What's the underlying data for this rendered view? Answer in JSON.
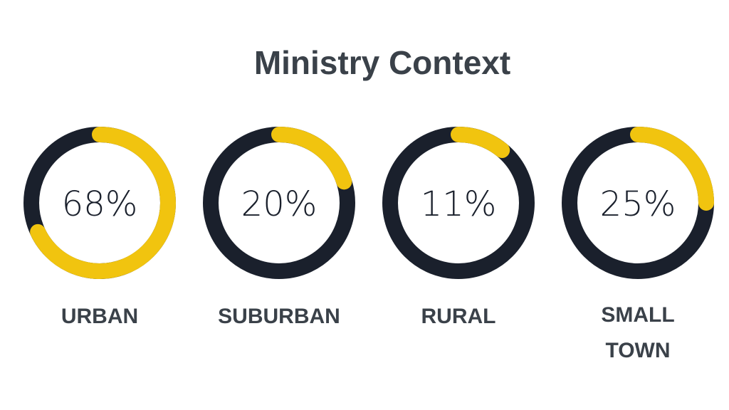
{
  "title": "Ministry Context",
  "colors": {
    "track": "#1a202c",
    "fill": "#f1c40f",
    "text": "#3a4149",
    "value_text": "#1a202c"
  },
  "chart_data": {
    "type": "donut",
    "title": "Ministry Context",
    "unit": "%",
    "categories": [
      "URBAN",
      "SUBURBAN",
      "RURAL",
      "SMALL\nTOWN"
    ],
    "values": [
      68,
      20,
      11,
      25
    ],
    "value_labels": [
      "68%",
      "20%",
      "11%",
      "25%"
    ],
    "category_labels": [
      "URBAN",
      "SUBURBAN",
      "RURAL",
      "SMALL TOWN"
    ],
    "max": 100
  }
}
